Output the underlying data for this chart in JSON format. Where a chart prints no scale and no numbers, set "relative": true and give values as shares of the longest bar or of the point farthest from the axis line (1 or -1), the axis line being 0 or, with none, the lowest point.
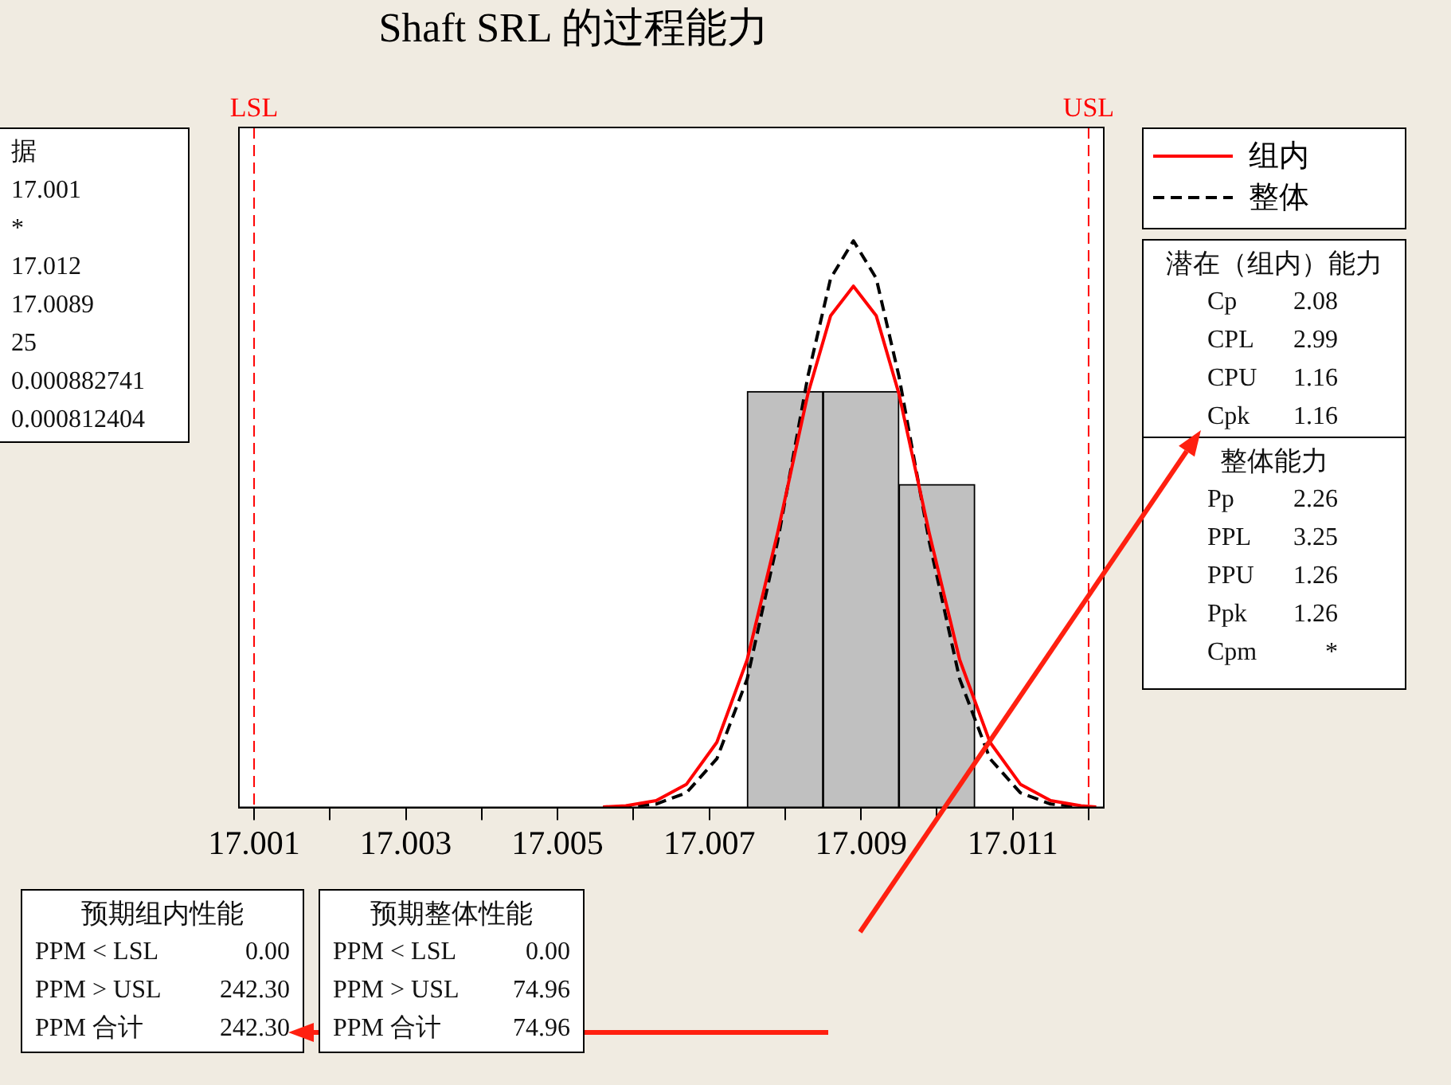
{
  "chart_data": {
    "type": "histogram",
    "title": "Shaft SRL 的过程能力",
    "relative": true,
    "bins": [
      17.0075,
      17.0085,
      17.0095,
      17.0105
    ],
    "values": [
      0.734,
      0.734,
      0.57
    ],
    "color": "#c0c0c0",
    "xlim": [
      17.0008,
      17.0122
    ],
    "xticks": [
      17.001,
      {
        "value": 17.002,
        "label": null
      },
      17.003,
      {
        "value": 17.004,
        "label": null
      },
      17.005,
      {
        "value": 17.006,
        "label": null
      },
      17.007,
      {
        "value": 17.008,
        "label": null
      },
      17.009,
      {
        "value": 17.01,
        "label": null
      },
      17.011,
      {
        "value": 17.012,
        "label": null
      }
    ],
    "grid": false,
    "legend": "top right",
    "series": [
      {
        "name": "组内",
        "type": "line",
        "color": "#ff0000",
        "line_style": "solid",
        "x": [
          17.0056,
          17.0059,
          17.0063,
          17.0067,
          17.0071,
          17.0075,
          17.0079,
          17.0083,
          17.0086,
          17.0089,
          17.0092,
          17.0095,
          17.0099,
          17.0103,
          17.0107,
          17.0111,
          17.0115,
          17.0119,
          17.0121
        ],
        "values": [
          0.001,
          0.003,
          0.012,
          0.041,
          0.115,
          0.261,
          0.484,
          0.73,
          0.868,
          0.92,
          0.868,
          0.73,
          0.484,
          0.261,
          0.115,
          0.041,
          0.012,
          0.003,
          0.001
        ]
      },
      {
        "name": "整体",
        "type": "line",
        "color": "#000000",
        "line_style": "dashed",
        "x": [
          17.0056,
          17.0059,
          17.0063,
          17.0067,
          17.0071,
          17.0075,
          17.0079,
          17.0083,
          17.0086,
          17.0089,
          17.0092,
          17.0095,
          17.0099,
          17.0103,
          17.0107,
          17.0111,
          17.0115,
          17.0119,
          17.0121
        ],
        "values": [
          0.0003,
          0.001,
          0.006,
          0.026,
          0.086,
          0.227,
          0.469,
          0.761,
          0.934,
          1,
          0.934,
          0.761,
          0.469,
          0.227,
          0.086,
          0.026,
          0.006,
          0.001,
          0.0004
        ]
      }
    ],
    "ref_lines": [
      {
        "axis": "x",
        "value": 17.001,
        "label": "LSL",
        "color": "#ff0000",
        "line_style": "dashed"
      },
      {
        "axis": "x",
        "value": 17.012,
        "label": "USL",
        "color": "#ff0000",
        "line_style": "dashed"
      }
    ],
    "annotations": [
      "据\n17.001\n*\n17.012\n17.0089\n25\n0.000882741\n0.000812404",
      "潜在（组内）能力\nCp\t2.08\nCPL\t2.99\nCPU\t1.16\nCpk\t1.16",
      "整体能力\nPp\t2.26\nPPL\t3.25\nPPU\t1.26\nPpk\t1.26\nCpm\t*",
      "预期组内性能\nPPM < LSL\t0.00\nPPM > USL\t242.30\nPPM 合计\t242.30",
      "预期整体性能\nPPM < LSL\t0.00\nPPM > USL\t74.96\nPPM 合计\t74.96"
    ]
  }
}
